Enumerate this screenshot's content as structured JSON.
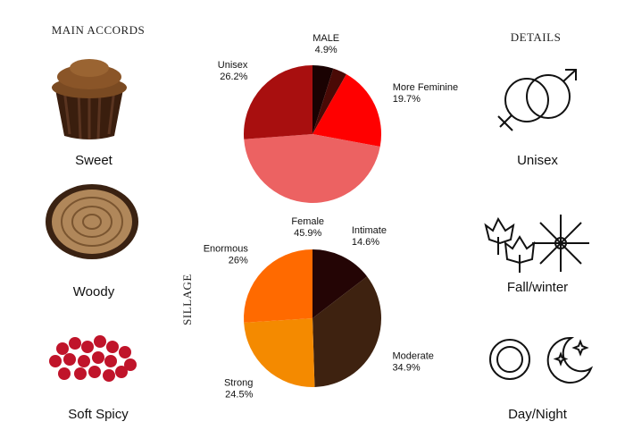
{
  "main_accords": {
    "title": "MAIN ACCORDS",
    "items": [
      "Sweet",
      "Woody",
      "Soft Spicy"
    ]
  },
  "details": {
    "title": "DETAILS",
    "items": [
      "Unisex",
      "Fall/winter",
      "Day/Night"
    ]
  },
  "chart_data": [
    {
      "type": "pie",
      "categories": [
        "MALE",
        null,
        "More Feminine",
        "Female",
        "Unisex"
      ],
      "values": [
        4.9,
        3.3,
        19.7,
        45.9,
        26.2
      ],
      "value_labels": [
        "4.9%",
        null,
        "19.7%",
        "45.9%",
        "26.2%"
      ],
      "colors": [
        "#1a0202",
        "#4a0a06",
        "#ff0000",
        "#ec6262",
        "#a80f0f"
      ]
    },
    {
      "type": "pie",
      "title": "SILLAGE",
      "categories": [
        "Intimate",
        "Moderate",
        "Strong",
        "Enormous"
      ],
      "values": [
        14.6,
        34.9,
        24.5,
        26
      ],
      "value_labels": [
        "14.6%",
        "34.9%",
        "24.5%",
        "26%"
      ],
      "colors": [
        "#240505",
        "#3e2210",
        "#f48a00",
        "#ff6a00"
      ]
    }
  ]
}
